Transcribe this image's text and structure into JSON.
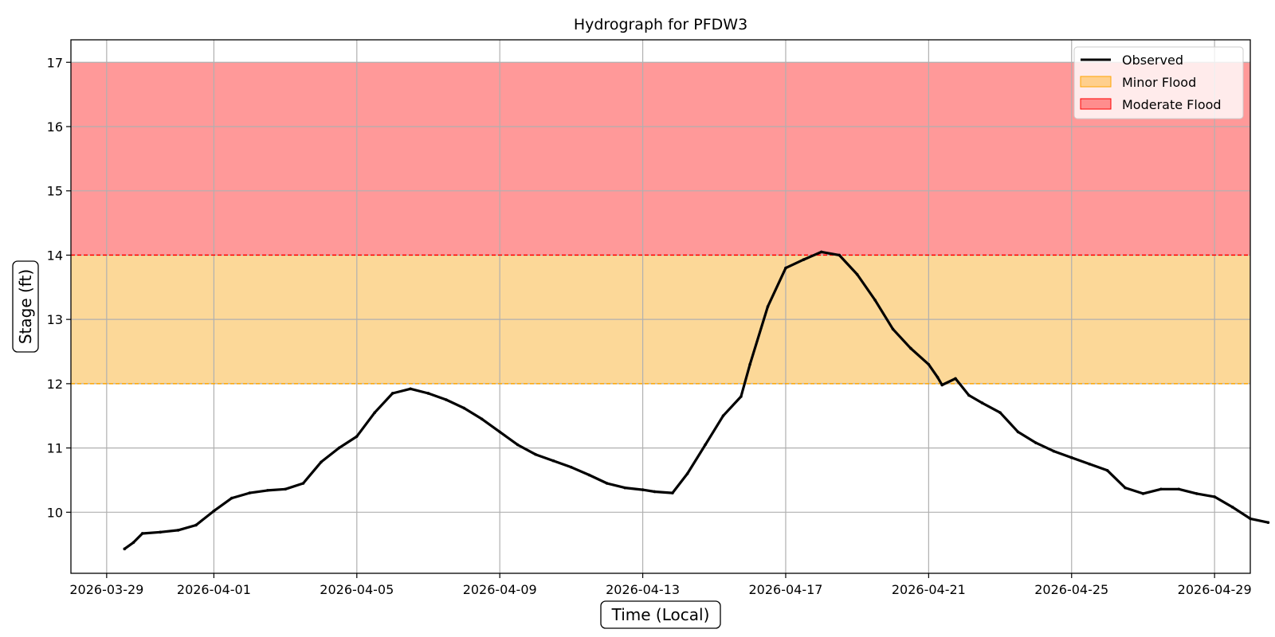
{
  "chart_data": {
    "type": "line",
    "title": "Hydrograph for PFDW3",
    "xlabel": "Time (Local)",
    "ylabel": "Stage (ft)",
    "xlim": [
      "2026-03-28T00:00",
      "2026-04-30T00:00"
    ],
    "ylim": [
      9.05,
      17.35
    ],
    "x_ticks": [
      "2026-03-29",
      "2026-04-01",
      "2026-04-05",
      "2026-04-09",
      "2026-04-13",
      "2026-04-17",
      "2026-04-21",
      "2026-04-25",
      "2026-04-29"
    ],
    "y_ticks": [
      10,
      11,
      12,
      13,
      14,
      15,
      16,
      17
    ],
    "grid": true,
    "legend_position": "top-right",
    "colors": {
      "observed": "#000000",
      "minor_fill": "#fcd898",
      "minor_line": "#ffa500",
      "moderate_fill": "#ff9999",
      "moderate_line": "#ff0000",
      "grid": "#b0b0b0"
    },
    "bands": [
      {
        "name": "Minor Flood",
        "from": 12,
        "to": 14
      },
      {
        "name": "Moderate Flood",
        "from": 14,
        "to": 17
      }
    ],
    "thresholds": [
      {
        "name": "Minor Flood",
        "value": 12
      },
      {
        "name": "Moderate Flood",
        "value": 14
      }
    ],
    "series": [
      {
        "name": "Observed",
        "points": [
          [
            "2026-03-29T12:00",
            9.43
          ],
          [
            "2026-03-29T18:00",
            9.53
          ],
          [
            "2026-03-30T00:00",
            9.67
          ],
          [
            "2026-03-30T12:00",
            9.69
          ],
          [
            "2026-03-31T00:00",
            9.72
          ],
          [
            "2026-03-31T12:00",
            9.8
          ],
          [
            "2026-04-01T00:00",
            10.02
          ],
          [
            "2026-04-01T12:00",
            10.22
          ],
          [
            "2026-04-02T00:00",
            10.3
          ],
          [
            "2026-04-02T12:00",
            10.34
          ],
          [
            "2026-04-03T00:00",
            10.36
          ],
          [
            "2026-04-03T12:00",
            10.45
          ],
          [
            "2026-04-04T00:00",
            10.78
          ],
          [
            "2026-04-04T12:00",
            11.0
          ],
          [
            "2026-04-05T00:00",
            11.18
          ],
          [
            "2026-04-05T12:00",
            11.55
          ],
          [
            "2026-04-06T00:00",
            11.85
          ],
          [
            "2026-04-06T12:00",
            11.92
          ],
          [
            "2026-04-07T00:00",
            11.85
          ],
          [
            "2026-04-07T12:00",
            11.75
          ],
          [
            "2026-04-08T00:00",
            11.62
          ],
          [
            "2026-04-08T12:00",
            11.45
          ],
          [
            "2026-04-09T00:00",
            11.25
          ],
          [
            "2026-04-09T12:00",
            11.05
          ],
          [
            "2026-04-10T00:00",
            10.9
          ],
          [
            "2026-04-10T12:00",
            10.8
          ],
          [
            "2026-04-11T00:00",
            10.7
          ],
          [
            "2026-04-11T12:00",
            10.58
          ],
          [
            "2026-04-12T00:00",
            10.45
          ],
          [
            "2026-04-12T12:00",
            10.38
          ],
          [
            "2026-04-13T00:00",
            10.35
          ],
          [
            "2026-04-13T08:00",
            10.32
          ],
          [
            "2026-04-13T20:00",
            10.3
          ],
          [
            "2026-04-14T06:00",
            10.6
          ],
          [
            "2026-04-14T18:00",
            11.05
          ],
          [
            "2026-04-15T06:00",
            11.5
          ],
          [
            "2026-04-15T18:00",
            11.8
          ],
          [
            "2026-04-16T00:00",
            12.3
          ],
          [
            "2026-04-16T12:00",
            13.2
          ],
          [
            "2026-04-17T00:00",
            13.8
          ],
          [
            "2026-04-17T12:00",
            13.93
          ],
          [
            "2026-04-18T00:00",
            14.05
          ],
          [
            "2026-04-18T12:00",
            14.0
          ],
          [
            "2026-04-19T00:00",
            13.7
          ],
          [
            "2026-04-19T12:00",
            13.3
          ],
          [
            "2026-04-20T00:00",
            12.85
          ],
          [
            "2026-04-20T12:00",
            12.55
          ],
          [
            "2026-04-21T00:00",
            12.3
          ],
          [
            "2026-04-21T06:00",
            12.1
          ],
          [
            "2026-04-21T09:00",
            11.98
          ],
          [
            "2026-04-21T18:00",
            12.08
          ],
          [
            "2026-04-22T03:00",
            11.82
          ],
          [
            "2026-04-22T12:00",
            11.7
          ],
          [
            "2026-04-23T00:00",
            11.55
          ],
          [
            "2026-04-23T12:00",
            11.25
          ],
          [
            "2026-04-24T00:00",
            11.08
          ],
          [
            "2026-04-24T12:00",
            10.95
          ],
          [
            "2026-04-25T00:00",
            10.85
          ],
          [
            "2026-04-25T12:00",
            10.75
          ],
          [
            "2026-04-26T00:00",
            10.65
          ],
          [
            "2026-04-26T12:00",
            10.38
          ],
          [
            "2026-04-27T00:00",
            10.29
          ],
          [
            "2026-04-27T12:00",
            10.36
          ],
          [
            "2026-04-28T00:00",
            10.36
          ],
          [
            "2026-04-28T12:00",
            10.29
          ],
          [
            "2026-04-29T00:00",
            10.24
          ],
          [
            "2026-04-29T12:00",
            10.08
          ],
          [
            "2026-04-30T00:00",
            9.9
          ],
          [
            "2026-04-30T12:00",
            9.84
          ]
        ]
      }
    ]
  }
}
